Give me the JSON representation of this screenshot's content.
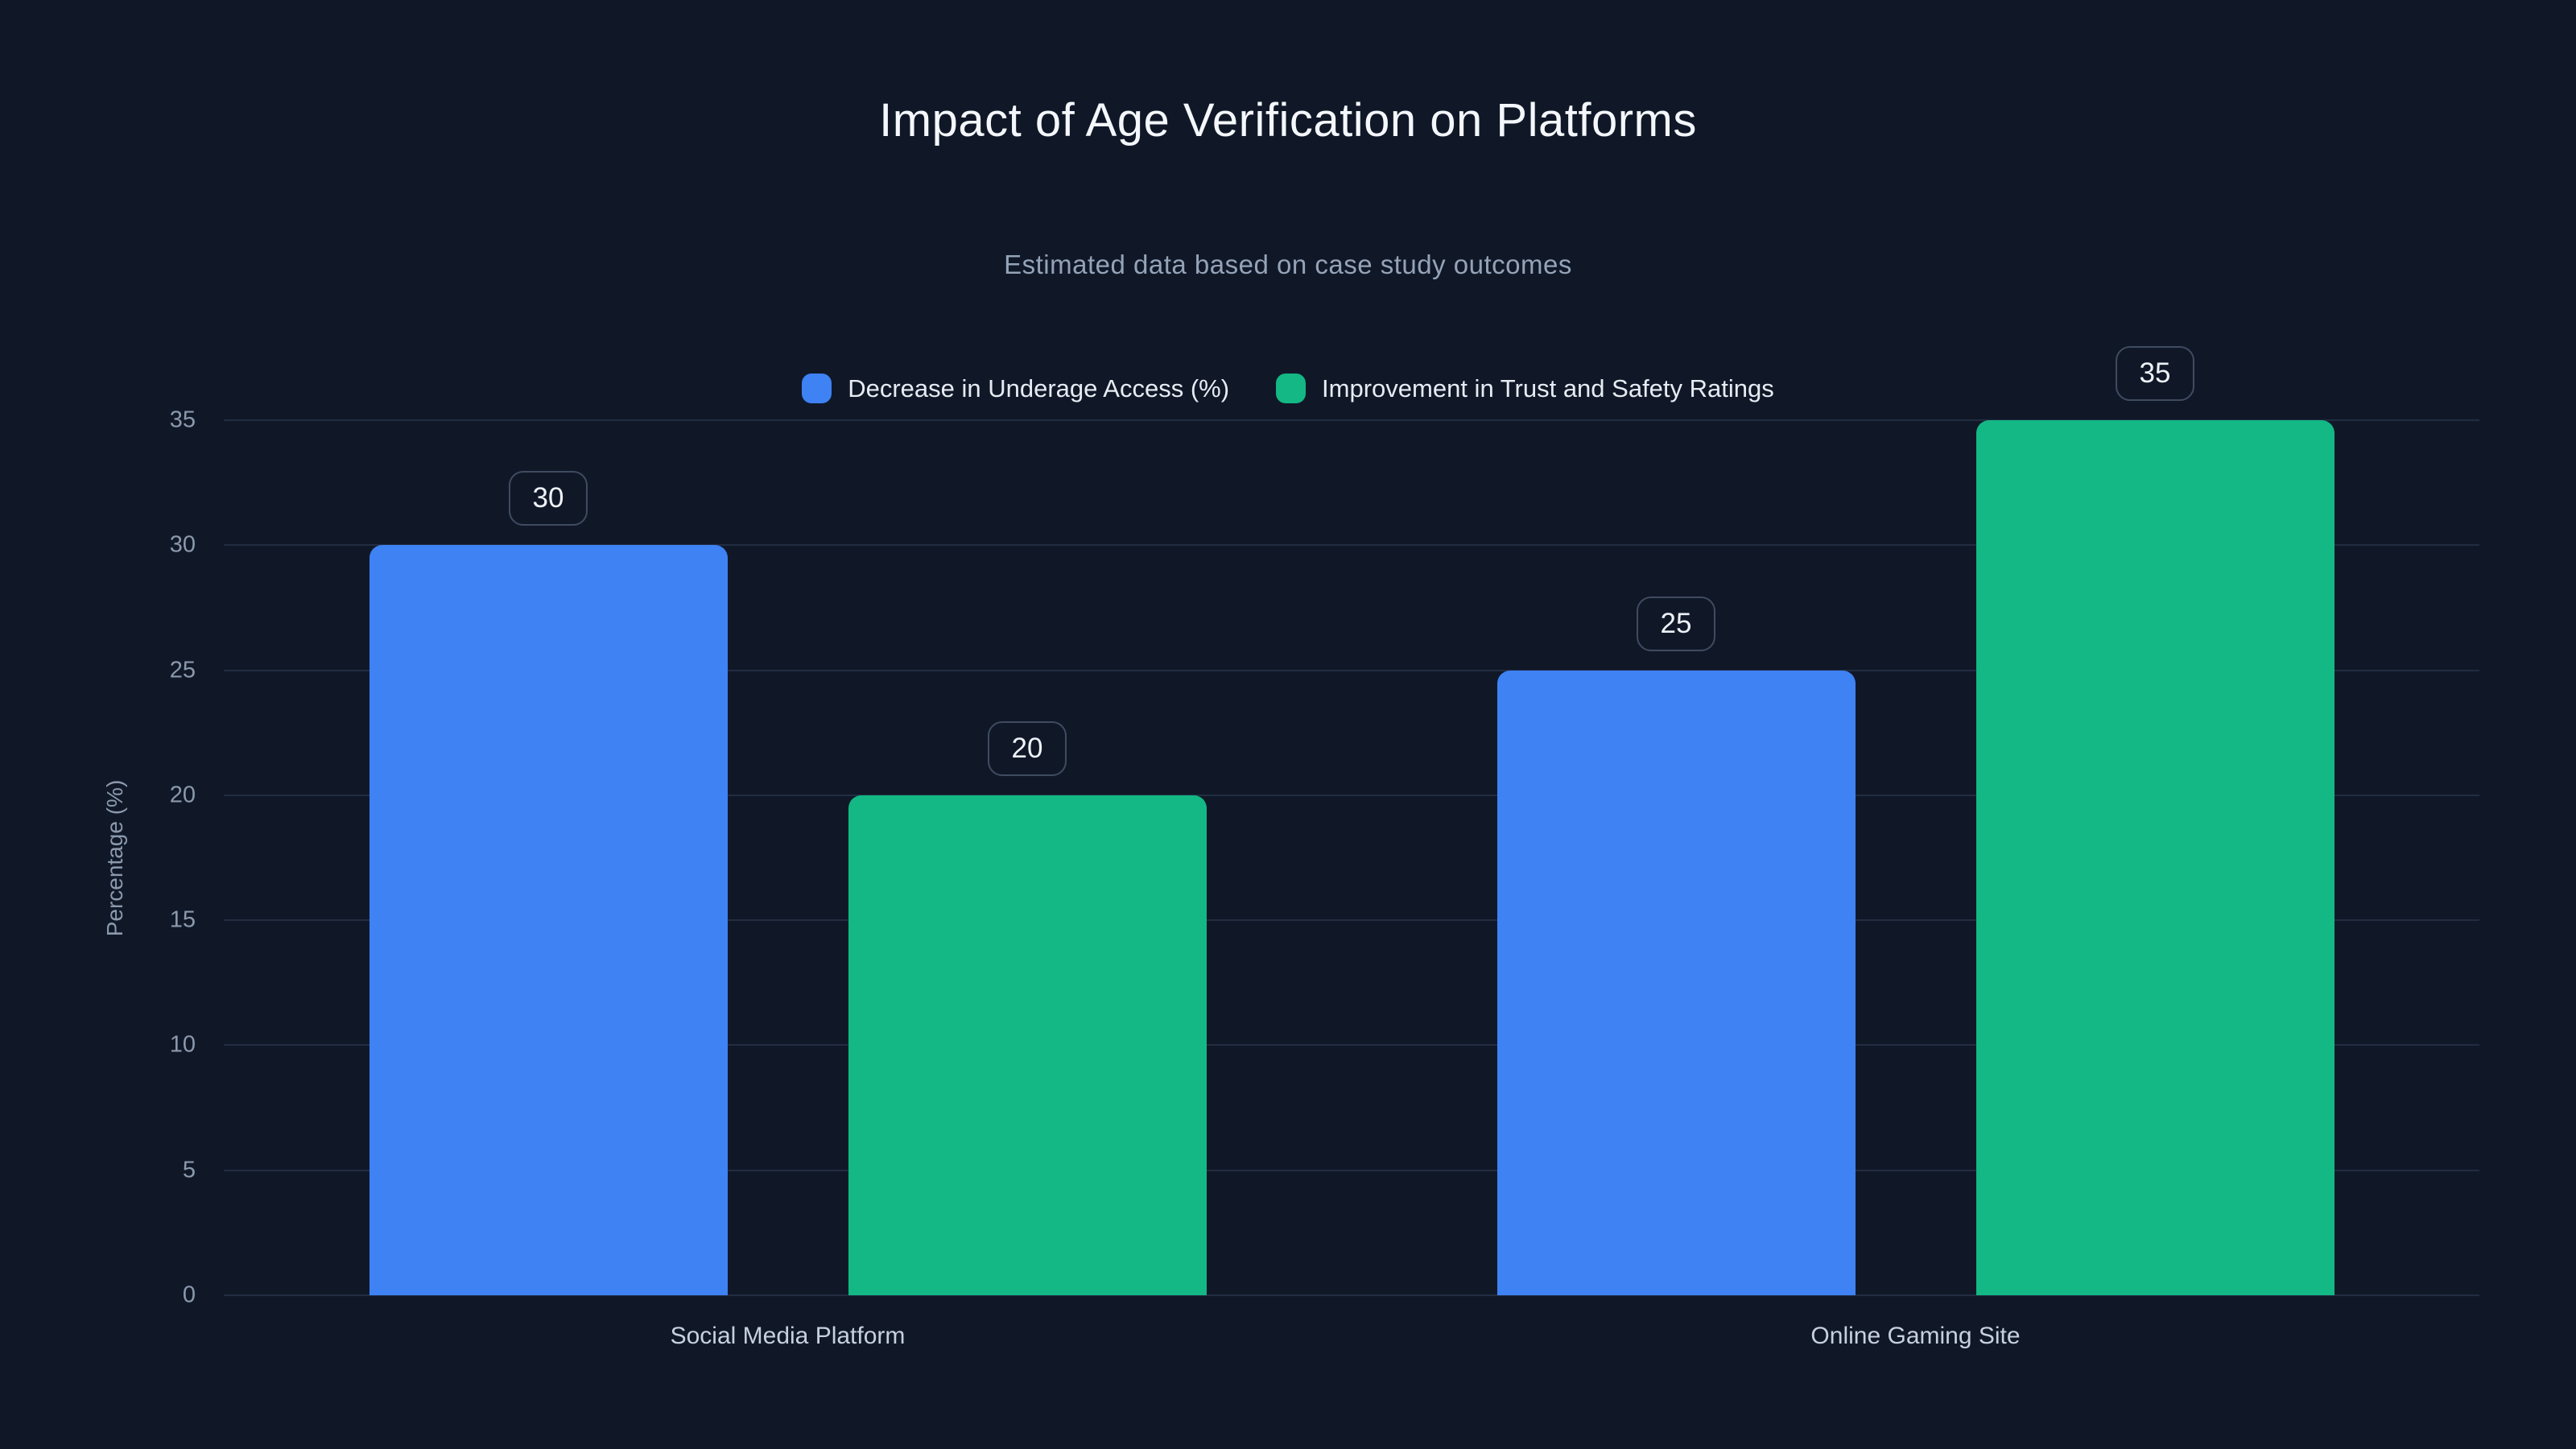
{
  "page": {
    "background_color": "#101828"
  },
  "header": {
    "title": "Impact of Age Verification on Platforms",
    "subtitle": "Estimated data based on case study outcomes"
  },
  "legend": {
    "items": [
      {
        "label": "Decrease in Underage Access (%)",
        "color": "#3e82f4"
      },
      {
        "label": "Improvement in Trust and Safety Ratings",
        "color": "#13b884"
      }
    ]
  },
  "chart_data": {
    "type": "bar",
    "title": "Impact of Age Verification on Platforms",
    "subtitle": "Estimated data based on case study outcomes",
    "categories": [
      "Social Media Platform",
      "Online Gaming Site"
    ],
    "series": [
      {
        "name": "Decrease in Underage Access (%)",
        "color": "#3e82f4",
        "values": [
          30,
          25
        ]
      },
      {
        "name": "Improvement in Trust and Safety Ratings",
        "color": "#13b884",
        "values": [
          20,
          35
        ]
      }
    ],
    "value_labels_shown": true,
    "xlabel": "",
    "ylabel": "Percentage (%)",
    "ylim": [
      0,
      35
    ],
    "yticks": [
      0,
      5,
      10,
      15,
      20,
      25,
      30,
      35
    ],
    "grid": "horizontal",
    "legend_position": "top-center"
  }
}
